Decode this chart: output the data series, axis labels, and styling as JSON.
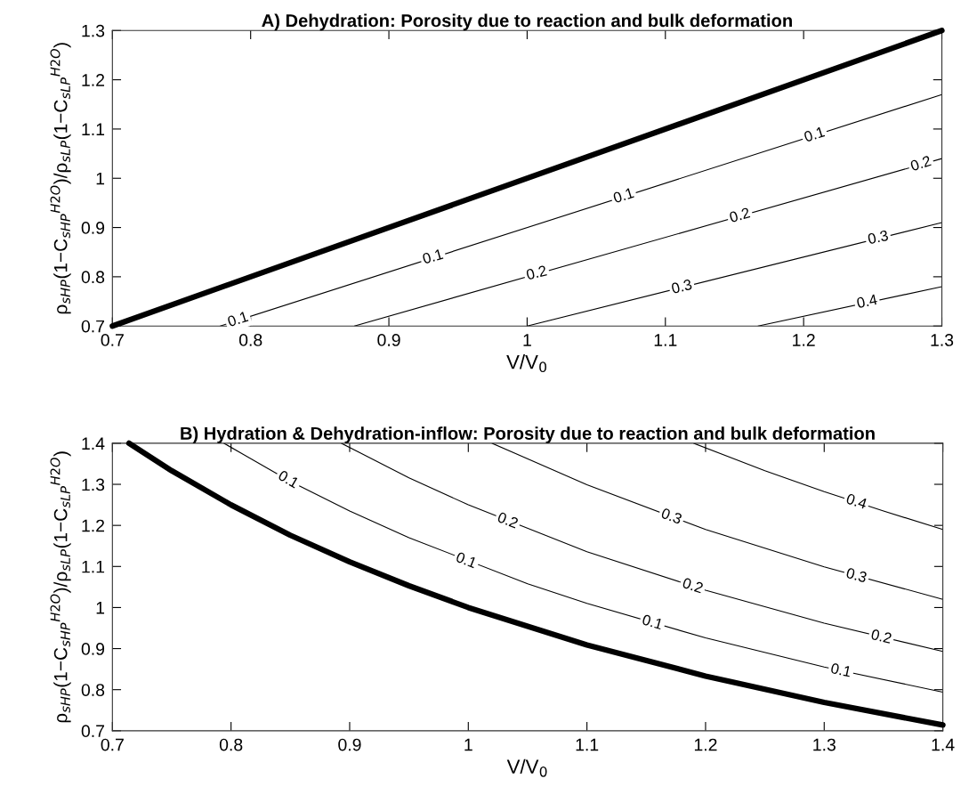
{
  "chart_data": [
    {
      "type": "line",
      "title": "A) Dehydration: Porosity due to reaction and bulk deformation",
      "xlabel": "V/V$_{0}$",
      "ylabel": "ρ$_{sHP}$(1−C$_{sHP}$$^{H2O}$)/ρ$_{sLP}$(1−C$_{sLP}$$^{H2O}$)",
      "series": [
        {
          "color": "#000000",
          "x": [
            0.7,
            1.3
          ],
          "values": [
            0.7,
            1.3
          ]
        },
        {
          "color": "#000000",
          "x": [
            0.778,
            1.3
          ],
          "values": [
            0.7,
            1.17
          ]
        },
        {
          "color": "#000000",
          "x": [
            0.875,
            1.3
          ],
          "values": [
            0.7,
            1.04
          ]
        },
        {
          "color": "#000000",
          "x": [
            1.0,
            1.3
          ],
          "values": [
            0.7,
            0.91
          ]
        },
        {
          "color": "#000000",
          "x": [
            1.167,
            1.3
          ],
          "values": [
            0.7,
            0.78
          ]
        }
      ],
      "annotations": [
        {
          "text": "0.1",
          "x": 0.791,
          "y": 0.712
        },
        {
          "text": "0.1",
          "x": 0.932,
          "y": 0.839
        },
        {
          "text": "0.1",
          "x": 1.07,
          "y": 0.963
        },
        {
          "text": "0.1",
          "x": 1.208,
          "y": 1.087
        },
        {
          "text": "0.2",
          "x": 1.007,
          "y": 0.806
        },
        {
          "text": "0.2",
          "x": 1.154,
          "y": 0.923
        },
        {
          "text": "0.2",
          "x": 1.285,
          "y": 1.028
        },
        {
          "text": "0.3",
          "x": 1.112,
          "y": 0.778
        },
        {
          "text": "0.3",
          "x": 1.254,
          "y": 0.878
        },
        {
          "text": "0.4",
          "x": 1.246,
          "y": 0.748
        }
      ],
      "xlim": [
        0.7,
        1.3
      ],
      "ylim": [
        0.7,
        1.3
      ],
      "xticks": [
        0.7,
        0.8,
        0.9,
        1,
        1.1,
        1.2,
        1.3
      ],
      "yticks": [
        0.7,
        0.8,
        0.9,
        1,
        1.1,
        1.2,
        1.3
      ],
      "grid": false
    },
    {
      "type": "line",
      "title": "B) Hydration & Dehydration-inflow: Porosity due to reaction and bulk deformation",
      "xlabel": "V/V$_{0}$",
      "ylabel": "ρ$_{sHP}$(1−C$_{sHP}$$^{H2O}$)/ρ$_{sLP}$(1−C$_{sLP}$$^{H2O}$)",
      "series": [
        {
          "color": "#000000",
          "x": [
            0.714,
            0.75,
            0.8,
            0.85,
            0.9,
            0.95,
            1.0,
            1.1,
            1.2,
            1.3,
            1.4
          ],
          "values": [
            1.4,
            1.333,
            1.25,
            1.176,
            1.111,
            1.053,
            1.0,
            0.909,
            0.833,
            0.769,
            0.714
          ]
        },
        {
          "color": "#000000",
          "x": [
            0.794,
            0.85,
            0.9,
            0.95,
            1.05,
            1.1,
            1.2,
            1.3,
            1.4
          ],
          "values": [
            1.4,
            1.307,
            1.235,
            1.17,
            1.058,
            1.01,
            0.926,
            0.855,
            0.794
          ]
        },
        {
          "color": "#000000",
          "x": [
            0.893,
            0.95,
            1.0,
            1.1,
            1.2,
            1.3,
            1.4
          ],
          "values": [
            1.4,
            1.316,
            1.25,
            1.136,
            1.042,
            0.962,
            0.893
          ]
        },
        {
          "color": "#000000",
          "x": [
            1.02,
            1.1,
            1.2,
            1.3,
            1.4
          ],
          "values": [
            1.4,
            1.299,
            1.19,
            1.099,
            1.02
          ]
        },
        {
          "color": "#000000",
          "x": [
            1.19,
            1.25,
            1.3,
            1.35,
            1.4
          ],
          "values": [
            1.4,
            1.333,
            1.282,
            1.235,
            1.19
          ]
        }
      ],
      "annotations": [
        {
          "text": "0.1",
          "x": 0.848,
          "y": 1.31
        },
        {
          "text": "0.1",
          "x": 0.998,
          "y": 1.113
        },
        {
          "text": "0.1",
          "x": 1.155,
          "y": 0.962
        },
        {
          "text": "0.1",
          "x": 1.314,
          "y": 0.845
        },
        {
          "text": "0.2",
          "x": 1.033,
          "y": 1.21
        },
        {
          "text": "0.2",
          "x": 1.189,
          "y": 1.051
        },
        {
          "text": "0.2",
          "x": 1.348,
          "y": 0.927
        },
        {
          "text": "0.3",
          "x": 1.171,
          "y": 1.22
        },
        {
          "text": "0.3",
          "x": 1.327,
          "y": 1.076
        },
        {
          "text": "0.4",
          "x": 1.327,
          "y": 1.256
        }
      ],
      "xlim": [
        0.7,
        1.4
      ],
      "ylim": [
        0.7,
        1.4
      ],
      "xticks": [
        0.7,
        0.8,
        0.9,
        1,
        1.1,
        1.2,
        1.3,
        1.4
      ],
      "yticks": [
        0.7,
        0.8,
        0.9,
        1,
        1.1,
        1.2,
        1.3,
        1.4
      ],
      "grid": false
    }
  ]
}
